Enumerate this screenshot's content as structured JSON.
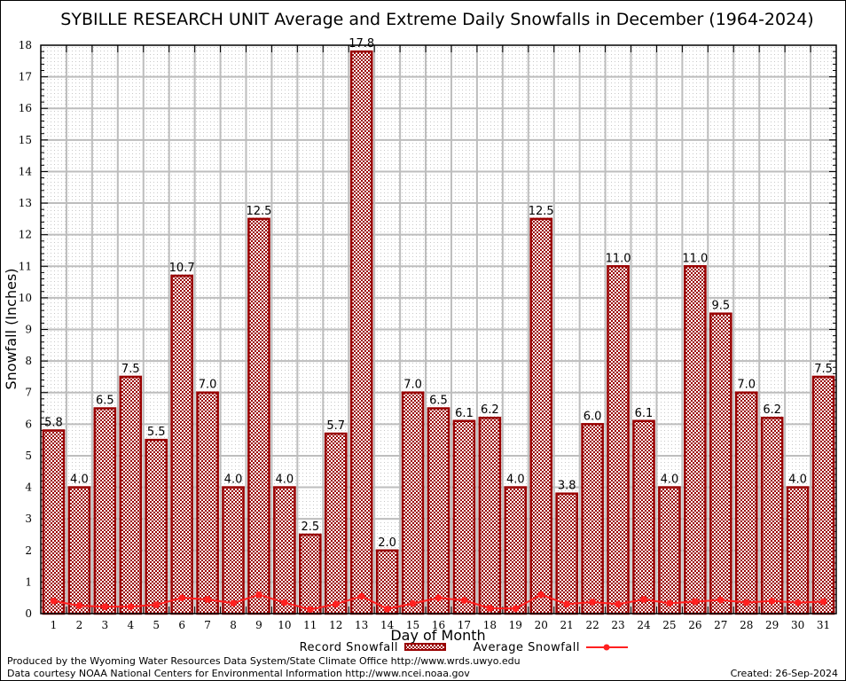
{
  "chart_data": {
    "type": "bar",
    "title": "SYBILLE RESEARCH UNIT Average and Extreme Daily Snowfalls in December (1964-2024)",
    "xlabel": "Day of Month",
    "ylabel": "Snowfall (Inches)",
    "ylim": [
      0,
      18
    ],
    "yticks": [
      "0",
      "1",
      "2",
      "3",
      "4",
      "5",
      "6",
      "7",
      "8",
      "9",
      "10",
      "11",
      "12",
      "13",
      "14",
      "15",
      "16",
      "17",
      "18"
    ],
    "grid": true,
    "categories": [
      "1",
      "2",
      "3",
      "4",
      "5",
      "6",
      "7",
      "8",
      "9",
      "10",
      "11",
      "12",
      "13",
      "14",
      "15",
      "16",
      "17",
      "18",
      "19",
      "20",
      "21",
      "22",
      "23",
      "24",
      "25",
      "26",
      "27",
      "28",
      "29",
      "30",
      "31"
    ],
    "series": [
      {
        "name": "Record Snowfall",
        "kind": "bar",
        "color": "#990000",
        "values": [
          5.8,
          4.0,
          6.5,
          7.5,
          5.5,
          10.7,
          7.0,
          4.0,
          12.5,
          4.0,
          2.5,
          5.7,
          17.8,
          2.0,
          7.0,
          6.5,
          6.1,
          6.2,
          4.0,
          12.5,
          3.8,
          6.0,
          11.0,
          6.1,
          4.0,
          11.0,
          9.5,
          7.0,
          6.2,
          4.0,
          7.5
        ],
        "labels": [
          "5.8",
          "4.0",
          "6.5",
          "7.5",
          "5.5",
          "10.7",
          "7.0",
          "4.0",
          "12.5",
          "4.0",
          "2.5",
          "5.7",
          "17.8",
          "2.0",
          "7.0",
          "6.5",
          "6.1",
          "6.2",
          "4.0",
          "12.5",
          "3.8",
          "6.0",
          "11.0",
          "6.1",
          "4.0",
          "11.0",
          "9.5",
          "7.0",
          "6.2",
          "4.0",
          "7.5"
        ]
      },
      {
        "name": "Average Snowfall",
        "kind": "line",
        "color": "#ff2020",
        "values": [
          0.4,
          0.25,
          0.22,
          0.22,
          0.28,
          0.5,
          0.45,
          0.33,
          0.6,
          0.35,
          0.13,
          0.3,
          0.55,
          0.15,
          0.32,
          0.5,
          0.42,
          0.17,
          0.16,
          0.6,
          0.3,
          0.37,
          0.3,
          0.45,
          0.33,
          0.38,
          0.43,
          0.35,
          0.4,
          0.35,
          0.38
        ]
      }
    ],
    "legend_position": "bottom-center"
  },
  "footer": {
    "produced_by": "Produced by the Wyoming Water Resources Data System/State Climate Office http://www.wrds.uwyo.edu",
    "data_courtesy": "Data courtesy NOAA National Centers for Environmental Information http://www.ncei.noaa.gov",
    "created": "Created: 26-Sep-2024"
  }
}
